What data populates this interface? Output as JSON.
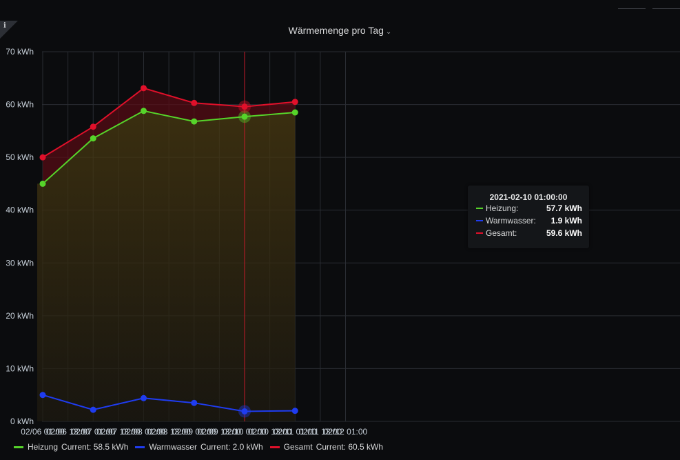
{
  "panel": {
    "title": "Wärmemenge pro Tag",
    "info_icon": "info-icon",
    "dropdown_icon": "chevron-down-icon"
  },
  "chart_data": {
    "type": "line",
    "title": "Wärmemenge pro Tag",
    "xlabel": "",
    "ylabel": "",
    "unit": "kWh",
    "ylim": [
      0,
      70
    ],
    "grid": true,
    "legend_position": "bottom",
    "y_ticks": [
      "0 kWh",
      "10 kWh",
      "20 kWh",
      "30 kWh",
      "40 kWh",
      "50 kWh",
      "60 kWh",
      "70 kWh"
    ],
    "x_ticks": [
      "02/06 01:00",
      "02/06 13:00",
      "02/07 01:00",
      "02/07 13:00",
      "02/08 01:00",
      "02/08 13:00",
      "02/09 01:00",
      "02/09 13:00",
      "02/10 01:00",
      "02/10 13:00",
      "02/11 01:00",
      "02/11 13:00",
      "02/12 01:00"
    ],
    "x": [
      "02/06 01:00",
      "02/07 01:00",
      "02/08 01:00",
      "02/09 01:00",
      "02/10 01:00",
      "02/11 01:00"
    ],
    "series": [
      {
        "name": "Heizung",
        "color": "#56d42a",
        "values": [
          45.0,
          53.6,
          58.8,
          56.8,
          57.7,
          58.5
        ],
        "current": "Current: 58.5 kWh"
      },
      {
        "name": "Warmwasser",
        "color": "#1f3cf0",
        "values": [
          5.0,
          2.2,
          4.4,
          3.5,
          1.9,
          2.0
        ],
        "current": "Current: 2.0 kWh"
      },
      {
        "name": "Gesamt",
        "color": "#e0102a",
        "values": [
          50.0,
          55.8,
          63.1,
          60.3,
          59.6,
          60.5
        ],
        "current": "Current: 60.5 kWh"
      }
    ],
    "hover_index": 4
  },
  "tooltip": {
    "time": "2021-02-10 01:00:00",
    "rows": [
      {
        "label": "Heizung:",
        "value": "57.7 kWh",
        "color": "#56d42a"
      },
      {
        "label": "Warmwasser:",
        "value": "1.9 kWh",
        "color": "#1f3cf0"
      },
      {
        "label": "Gesamt:",
        "value": "59.6 kWh",
        "color": "#e0102a"
      }
    ]
  }
}
